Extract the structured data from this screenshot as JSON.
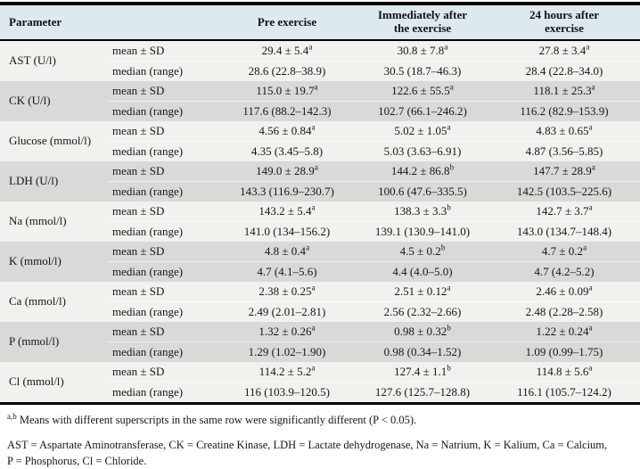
{
  "table": {
    "columns": {
      "parameter": "Parameter",
      "pre": "Pre exercise",
      "immediately_after": "Immediately after\nthe exercise",
      "after_24h": "24 hours after\nexercise"
    },
    "groups": [
      {
        "parameter": "AST (U/l)",
        "rows": [
          {
            "label": "mean ± SD",
            "values": [
              {
                "v": "29.4 ± 5.4",
                "sup": "a"
              },
              {
                "v": "30.8 ± 7.8",
                "sup": "a"
              },
              {
                "v": "27.8 ± 3.4",
                "sup": "a"
              }
            ]
          },
          {
            "label": "median (range)",
            "values": [
              {
                "v": "28.6 (22.8–38.9)",
                "sup": ""
              },
              {
                "v": "30.5 (18.7–46.3)",
                "sup": ""
              },
              {
                "v": "28.4 (22.8–34.0)",
                "sup": ""
              }
            ]
          }
        ]
      },
      {
        "parameter": "CK (U/l)",
        "rows": [
          {
            "label": "mean ± SD",
            "values": [
              {
                "v": "115.0 ± 19.7",
                "sup": "a"
              },
              {
                "v": "122.6 ± 55.5",
                "sup": "a"
              },
              {
                "v": "118.1 ± 25.3",
                "sup": "a"
              }
            ]
          },
          {
            "label": "median (range)",
            "values": [
              {
                "v": "117.6 (88.2–142.3)",
                "sup": ""
              },
              {
                "v": "102.7 (66.1–246.2)",
                "sup": ""
              },
              {
                "v": "116.2 (82.9–153.9)",
                "sup": ""
              }
            ]
          }
        ]
      },
      {
        "parameter": "Glucose (mmol/l)",
        "rows": [
          {
            "label": "mean ± SD",
            "values": [
              {
                "v": "4.56 ± 0.84",
                "sup": "a"
              },
              {
                "v": "5.02 ± 1.05",
                "sup": "a"
              },
              {
                "v": "4.83 ± 0.65",
                "sup": "a"
              }
            ]
          },
          {
            "label": "median (range)",
            "values": [
              {
                "v": "4.35 (3.45–5.8)",
                "sup": ""
              },
              {
                "v": "5.03 (3.63–6.91)",
                "sup": ""
              },
              {
                "v": "4.87 (3.56–5.85)",
                "sup": ""
              }
            ]
          }
        ]
      },
      {
        "parameter": "LDH (U/l)",
        "rows": [
          {
            "label": "mean ± SD",
            "values": [
              {
                "v": "149.0 ± 28.9",
                "sup": "a"
              },
              {
                "v": "144.2 ± 86.8",
                "sup": "b"
              },
              {
                "v": "147.7 ± 28.9",
                "sup": "a"
              }
            ]
          },
          {
            "label": "median (range)",
            "values": [
              {
                "v": "143.3 (116.9–230.7)",
                "sup": ""
              },
              {
                "v": "100.6 (47.6–335.5)",
                "sup": ""
              },
              {
                "v": "142.5 (103.5–225.6)",
                "sup": ""
              }
            ]
          }
        ]
      },
      {
        "parameter": "Na (mmol/l)",
        "rows": [
          {
            "label": "mean ± SD",
            "values": [
              {
                "v": "143.2 ± 5.4",
                "sup": "a"
              },
              {
                "v": "138.3 ± 3.3",
                "sup": "b"
              },
              {
                "v": "142.7 ± 3.7",
                "sup": "a"
              }
            ]
          },
          {
            "label": "median (range)",
            "values": [
              {
                "v": "141.0 (134–156.2)",
                "sup": ""
              },
              {
                "v": "139.1 (130.9–141.0)",
                "sup": ""
              },
              {
                "v": "143.0 (134.7–148.4)",
                "sup": ""
              }
            ]
          }
        ]
      },
      {
        "parameter": "K (mmol/l)",
        "rows": [
          {
            "label": "mean ± SD",
            "values": [
              {
                "v": "4.8 ± 0.4",
                "sup": "a"
              },
              {
                "v": "4.5 ± 0.2",
                "sup": "b"
              },
              {
                "v": "4.7 ± 0.2",
                "sup": "a"
              }
            ]
          },
          {
            "label": "median (range)",
            "values": [
              {
                "v": "4.7 (4.1–5.6)",
                "sup": ""
              },
              {
                "v": "4.4 (4.0–5.0)",
                "sup": ""
              },
              {
                "v": "4.7 (4.2–5.2)",
                "sup": ""
              }
            ]
          }
        ]
      },
      {
        "parameter": "Ca (mmol/l)",
        "rows": [
          {
            "label": "mean ± SD",
            "values": [
              {
                "v": "2.38 ± 0.25",
                "sup": "a"
              },
              {
                "v": "2.51 ± 0.12",
                "sup": "a"
              },
              {
                "v": "2.46 ± 0.09",
                "sup": "a"
              }
            ]
          },
          {
            "label": "median (range)",
            "values": [
              {
                "v": "2.49 (2.01–2.81)",
                "sup": ""
              },
              {
                "v": "2.56 (2.32–2.66)",
                "sup": ""
              },
              {
                "v": "2.48 (2.28–2.58)",
                "sup": ""
              }
            ]
          }
        ]
      },
      {
        "parameter": "P (mmol/l)",
        "rows": [
          {
            "label": "mean ± SD",
            "values": [
              {
                "v": "1.32 ± 0.26",
                "sup": "a"
              },
              {
                "v": "0.98 ± 0.32",
                "sup": "b"
              },
              {
                "v": "1.22 ± 0.24",
                "sup": "a"
              }
            ]
          },
          {
            "label": "median (range)",
            "values": [
              {
                "v": "1.29 (1.02–1.90)",
                "sup": ""
              },
              {
                "v": "0.98 (0.34–1.52)",
                "sup": ""
              },
              {
                "v": "1.09 (0.99–1.75)",
                "sup": ""
              }
            ]
          }
        ]
      },
      {
        "parameter": "Cl (mmol/l)",
        "rows": [
          {
            "label": "mean ± SD",
            "values": [
              {
                "v": "114.2 ± 5.2",
                "sup": "a"
              },
              {
                "v": "127.4 ± 1.1",
                "sup": "b"
              },
              {
                "v": "114.8 ± 5.6",
                "sup": "a"
              }
            ]
          },
          {
            "label": "median (range)",
            "values": [
              {
                "v": "116 (103.9–120.5)",
                "sup": ""
              },
              {
                "v": "127.6 (125.7–128.8)",
                "sup": ""
              },
              {
                "v": "116.1 (105.7–124.2)",
                "sup": ""
              }
            ]
          }
        ]
      }
    ]
  },
  "footnotes": {
    "sig_sup": "a,b",
    "sig_text": " Means with different superscripts in the same row were significantly different (P < 0.05).",
    "abbreviations": "AST = Aspartate Aminotransferase, CK = Creatine Kinase, LDH = Lactate dehydrogenase, Na = Natrium, K = Kalium, Ca = Calcium,\nP = Phosphorus, Cl = Chloride."
  },
  "colors": {
    "header_bg": "#dde8ef",
    "row_light": "#f1f1ee",
    "row_gray": "#d9d9d7",
    "border": "#000000",
    "text": "#15151f"
  }
}
